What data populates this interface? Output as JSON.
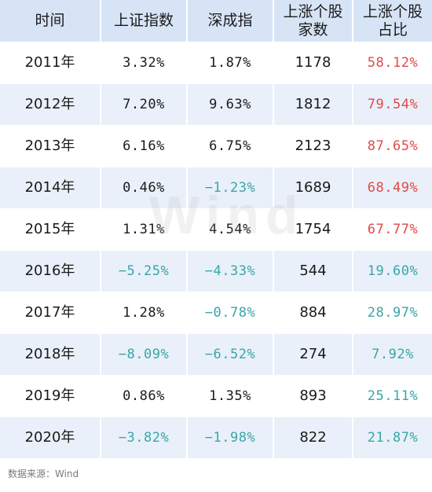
{
  "headers": [
    "时间",
    "上证指数",
    "深成指",
    "上涨个股\n家数",
    "上涨个股\n占比"
  ],
  "rows": [
    {
      "year": "2011年",
      "sh": "3.32%",
      "sz": "1.87%",
      "up_count": "1178",
      "up_pct": "58.12%"
    },
    {
      "year": "2012年",
      "sh": "7.20%",
      "sz": "9.63%",
      "up_count": "1812",
      "up_pct": "79.54%"
    },
    {
      "year": "2013年",
      "sh": "6.16%",
      "sz": "6.75%",
      "up_count": "2123",
      "up_pct": "87.65%"
    },
    {
      "year": "2014年",
      "sh": "0.46%",
      "sz": "−1.23%",
      "up_count": "1689",
      "up_pct": "68.49%"
    },
    {
      "year": "2015年",
      "sh": "1.31%",
      "sz": "4.54%",
      "up_count": "1754",
      "up_pct": "67.77%"
    },
    {
      "year": "2016年",
      "sh": "−5.25%",
      "sz": "−4.33%",
      "up_count": "544",
      "up_pct": "19.60%"
    },
    {
      "year": "2017年",
      "sh": "1.28%",
      "sz": "−0.78%",
      "up_count": "884",
      "up_pct": "28.97%"
    },
    {
      "year": "2018年",
      "sh": "−8.09%",
      "sz": "−6.52%",
      "up_count": "274",
      "up_pct": "7.92%"
    },
    {
      "year": "2019年",
      "sh": "0.86%",
      "sz": "1.35%",
      "up_count": "893",
      "up_pct": "25.11%"
    },
    {
      "year": "2020年",
      "sh": "−3.82%",
      "sz": "−1.98%",
      "up_count": "822",
      "up_pct": "21.87%"
    }
  ],
  "colors": {
    "header_bg": "#d7e4f6",
    "stripe_bg": "#e9f0fa",
    "positive_pct": "#e04a4a",
    "negative": "#3aa6a6"
  },
  "watermark": "Wind",
  "source": "数据来源：Wind"
}
